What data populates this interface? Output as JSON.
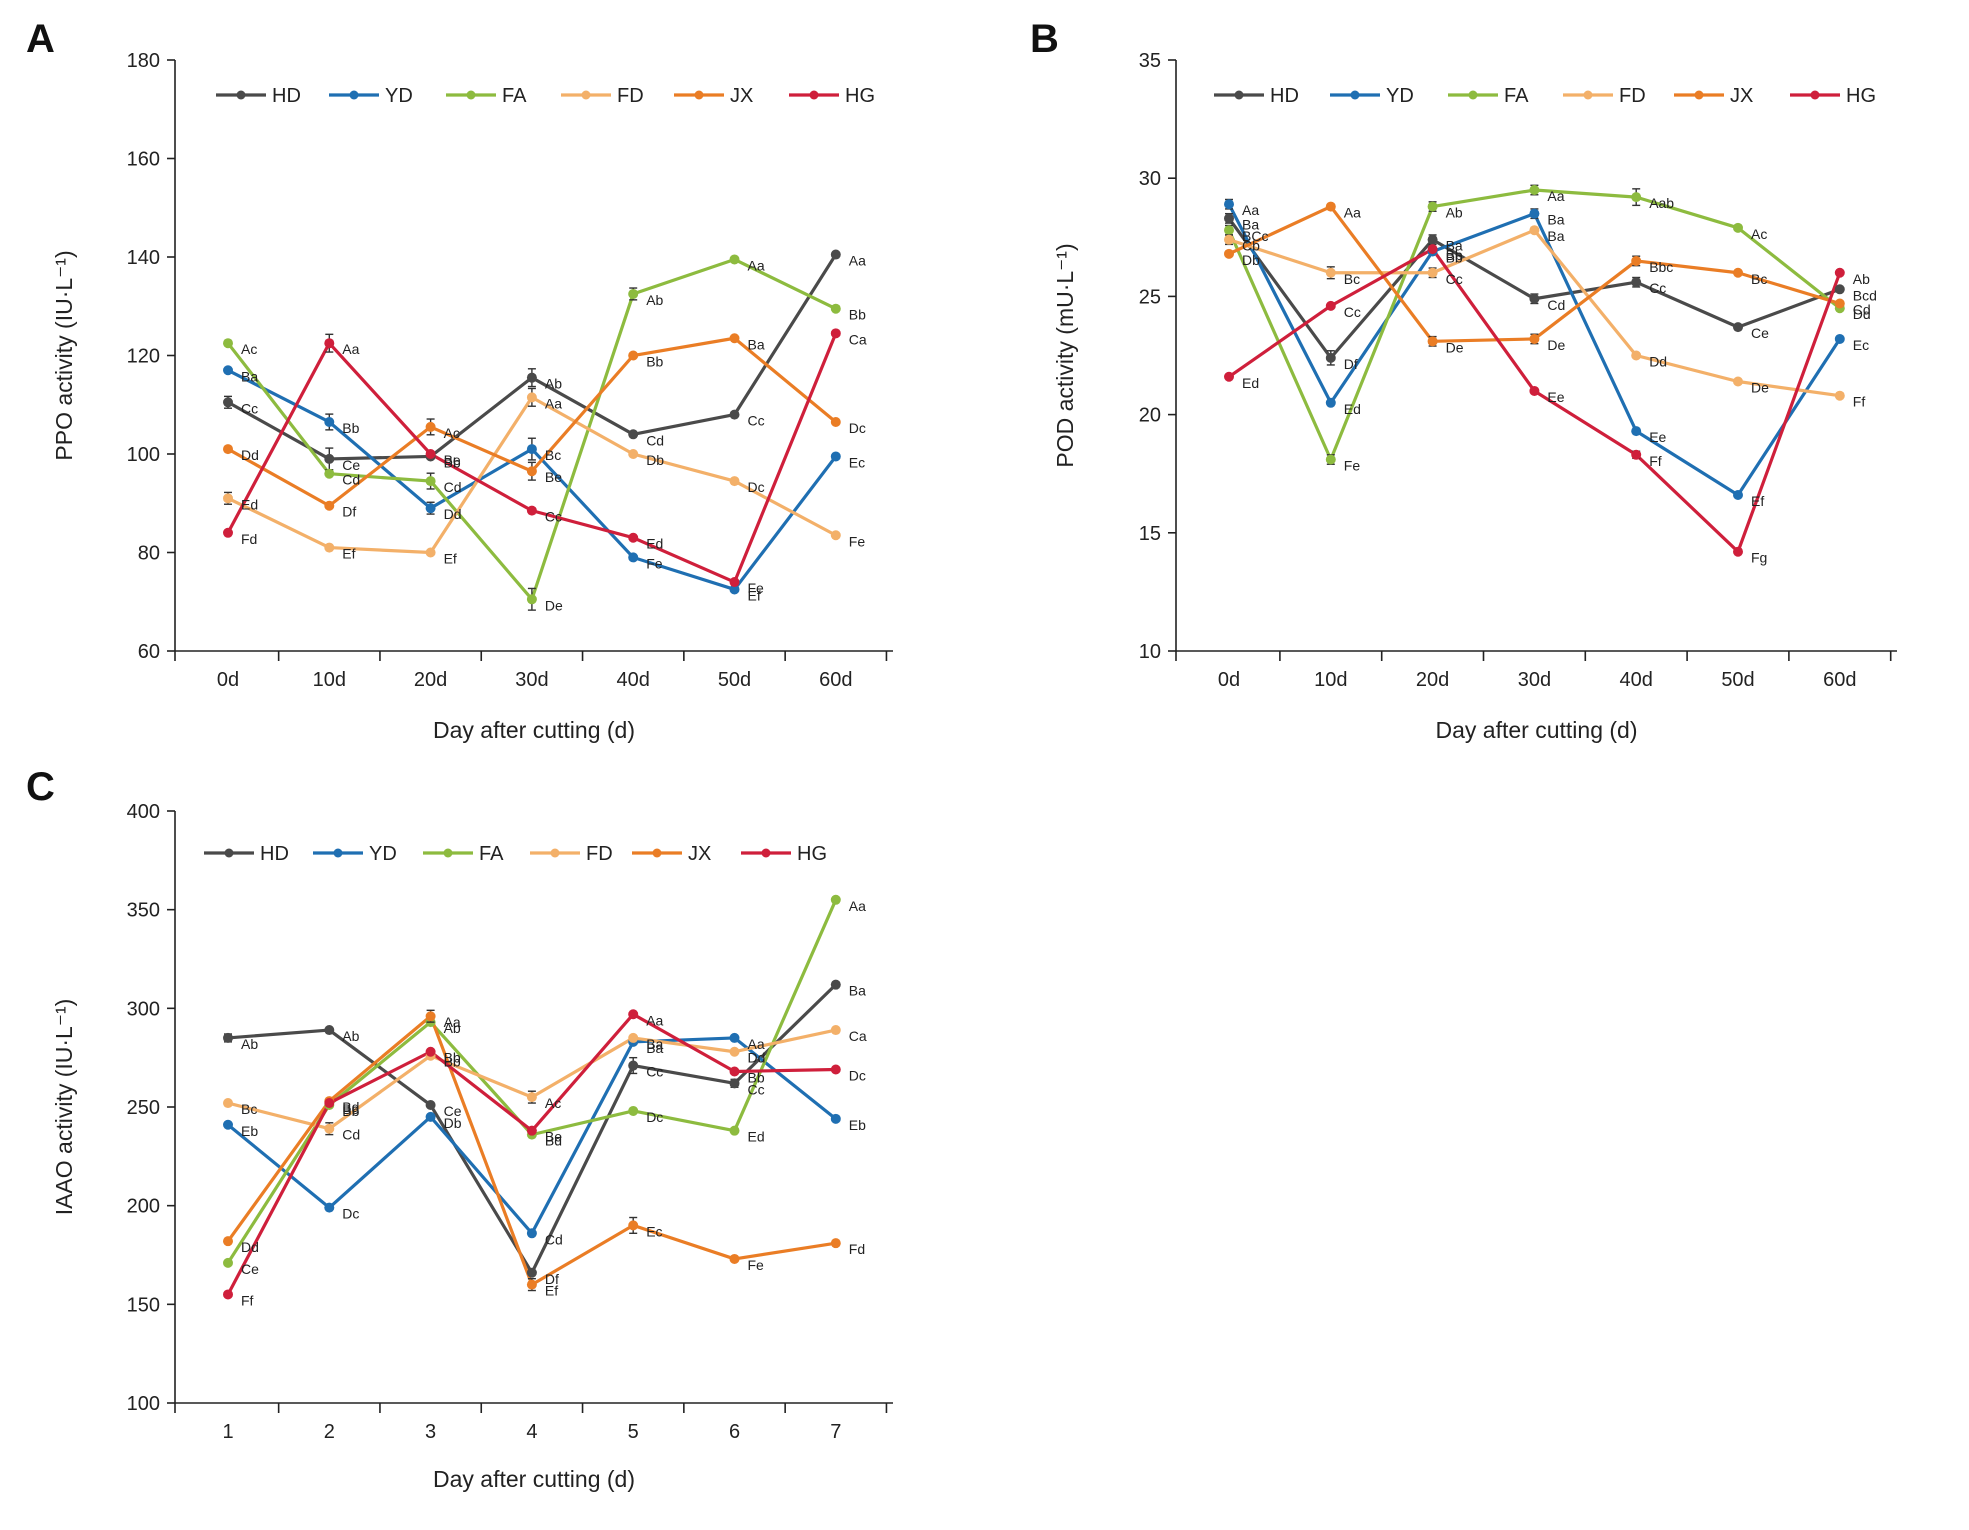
{
  "series_colors": {
    "HD": "#4a4a4a",
    "YD": "#1f6fb2",
    "FA": "#8dbb3f",
    "FD": "#f3b069",
    "JX": "#ea7d25",
    "HG": "#cf1f3b"
  },
  "chart_data": [
    {
      "panel": "A",
      "type": "line",
      "title": "",
      "xlabel": "Day after cutting (d)",
      "ylabel": "PPO activity (IU·L⁻¹)",
      "categories": [
        "0d",
        "10d",
        "20d",
        "30d",
        "40d",
        "50d",
        "60d"
      ],
      "ylim": [
        60,
        180
      ],
      "yticks": [
        60,
        80,
        100,
        120,
        140,
        160,
        180
      ],
      "legend_position": "top",
      "series": [
        {
          "name": "HD",
          "values": [
            110.5,
            99.0,
            99.5,
            115.5,
            104.0,
            108.0,
            140.5
          ],
          "labels": [
            "Cc",
            "Ce",
            "Bb",
            "Ab",
            "Cd",
            "Cc",
            "Aa"
          ],
          "err": [
            1.2,
            2.2,
            0,
            1.8,
            0,
            0,
            0
          ]
        },
        {
          "name": "YD",
          "values": [
            117.0,
            106.5,
            89.0,
            101.0,
            79.0,
            72.5,
            99.5
          ],
          "labels": [
            "Ba",
            "Bb",
            "Dd",
            "Bc",
            "Fe",
            "Ef",
            "Ec"
          ],
          "err": [
            0,
            1.6,
            1.2,
            2.2,
            0,
            0,
            0
          ]
        },
        {
          "name": "FA",
          "values": [
            122.5,
            96.0,
            94.5,
            70.5,
            132.5,
            139.5,
            129.5
          ],
          "labels": [
            "Ac",
            "Cd",
            "Cd",
            "De",
            "Ab",
            "Aa",
            "Bb"
          ],
          "err": [
            0,
            0,
            1.6,
            2.2,
            1.2,
            0,
            0
          ]
        },
        {
          "name": "FD",
          "values": [
            91.0,
            81.0,
            80.0,
            111.5,
            100.0,
            94.5,
            83.5
          ],
          "labels": [
            "Ed",
            "Ef",
            "Ef",
            "Aa",
            "Db",
            "Dc",
            "Fe"
          ],
          "err": [
            1.2,
            0,
            0,
            1.8,
            0,
            0,
            0
          ]
        },
        {
          "name": "JX",
          "values": [
            101.0,
            89.5,
            105.5,
            96.5,
            120.0,
            123.5,
            106.5
          ],
          "labels": [
            "Dd",
            "Df",
            "Ac",
            "Be",
            "Bb",
            "Ba",
            "Dc"
          ],
          "err": [
            0,
            0,
            1.6,
            1.8,
            0,
            0,
            0
          ]
        },
        {
          "name": "HG",
          "values": [
            84.0,
            122.5,
            100.0,
            88.5,
            83.0,
            74.0,
            124.5
          ],
          "labels": [
            "Fd",
            "Aa",
            "Be",
            "Cc",
            "Ed",
            "Fe",
            "Ca"
          ],
          "err": [
            0,
            1.8,
            0,
            0,
            0,
            0,
            0
          ]
        }
      ]
    },
    {
      "panel": "B",
      "type": "line",
      "title": "",
      "xlabel": "Day after cutting (d)",
      "ylabel": "POD activity (mU·L⁻¹)",
      "categories": [
        "0d",
        "10d",
        "20d",
        "30d",
        "40d",
        "50d",
        "60d"
      ],
      "ylim": [
        10,
        35
      ],
      "yticks": [
        10,
        15,
        20,
        25,
        30,
        35
      ],
      "legend_position": "top",
      "series": [
        {
          "name": "HD",
          "values": [
            28.3,
            22.4,
            27.4,
            24.9,
            25.6,
            23.7,
            25.3
          ],
          "labels": [
            "Ba",
            "Df",
            "Ba",
            "Cd",
            "Cc",
            "Ce",
            "Bcd"
          ],
          "err": [
            0.2,
            0.3,
            0.2,
            0.2,
            0.2,
            0,
            0
          ]
        },
        {
          "name": "YD",
          "values": [
            28.9,
            20.5,
            26.9,
            28.5,
            19.3,
            16.6,
            23.2
          ],
          "labels": [
            "Aa",
            "Ed",
            "Bb",
            "Ba",
            "Ee",
            "Ef",
            "Ec"
          ],
          "err": [
            0.2,
            0,
            0,
            0.2,
            0,
            0,
            0
          ]
        },
        {
          "name": "FA",
          "values": [
            27.8,
            18.1,
            28.8,
            29.5,
            29.2,
            27.9,
            24.5
          ],
          "labels": [
            "BCc",
            "Fe",
            "Ab",
            "Aa",
            "Aab",
            "Ac",
            "Dd"
          ],
          "err": [
            0.2,
            0.2,
            0.2,
            0.2,
            0.35,
            0,
            0
          ]
        },
        {
          "name": "FD",
          "values": [
            27.4,
            26.0,
            26.0,
            27.8,
            22.5,
            21.4,
            20.8
          ],
          "labels": [
            "Cb",
            "Bc",
            "Cc",
            "Ba",
            "Dd",
            "De",
            "Ff"
          ],
          "err": [
            0.2,
            0.25,
            0.2,
            0,
            0,
            0,
            0
          ]
        },
        {
          "name": "JX",
          "values": [
            26.8,
            28.8,
            23.1,
            23.2,
            26.5,
            26.0,
            24.7
          ],
          "labels": [
            "Db",
            "Aa",
            "De",
            "De",
            "Bbc",
            "Bc",
            "Cd"
          ],
          "err": [
            0,
            0,
            0.2,
            0.2,
            0.2,
            0,
            0
          ]
        },
        {
          "name": "HG",
          "values": [
            21.6,
            24.6,
            27.0,
            21.0,
            18.3,
            14.2,
            26.0
          ],
          "labels": [
            "Ed",
            "Cc",
            "Bb",
            "Ee",
            "Ff",
            "Fg",
            "Ab"
          ],
          "err": [
            0,
            0,
            0,
            0,
            0.15,
            0,
            0
          ]
        }
      ]
    },
    {
      "panel": "C",
      "type": "line",
      "title": "",
      "xlabel": "Day after cutting (d)",
      "ylabel": "IAAO activity (IU·L⁻¹)",
      "categories": [
        "1",
        "2",
        "3",
        "4",
        "5",
        "6",
        "7"
      ],
      "ylim": [
        100,
        400
      ],
      "yticks": [
        100,
        150,
        200,
        250,
        300,
        350,
        400
      ],
      "legend_position": "top",
      "series": [
        {
          "name": "HD",
          "values": [
            285,
            289,
            251,
            166,
            271,
            262,
            312
          ],
          "labels": [
            "Ab",
            "Ab",
            "Ce",
            "Df",
            "Cc",
            "Cc",
            "Ba"
          ],
          "err": [
            2,
            0,
            0,
            0,
            4,
            2,
            0
          ]
        },
        {
          "name": "YD",
          "values": [
            241,
            199,
            245,
            186,
            283,
            285,
            244
          ],
          "labels": [
            "Eb",
            "Dc",
            "Db",
            "Cd",
            "Ba",
            "Aa",
            "Eb"
          ],
          "err": [
            0,
            0,
            0,
            0,
            0,
            0,
            0
          ]
        },
        {
          "name": "FA",
          "values": [
            171,
            251,
            293,
            236,
            248,
            238,
            355
          ],
          "labels": [
            "Ce",
            "Bb",
            "Ab",
            "Bd",
            "Dc",
            "Ed",
            "Aa"
          ],
          "err": [
            0,
            0,
            0,
            0,
            0,
            0,
            0
          ]
        },
        {
          "name": "FD",
          "values": [
            252,
            239,
            276,
            255,
            285,
            278,
            289
          ],
          "labels": [
            "Bc",
            "Cd",
            "Bb",
            "Ac",
            "Ba",
            "Dd",
            "Ca"
          ],
          "err": [
            0,
            3,
            0,
            3,
            0,
            0,
            0
          ]
        },
        {
          "name": "JX",
          "values": [
            182,
            253,
            296,
            160,
            190,
            173,
            181
          ],
          "labels": [
            "Dd",
            "Bd",
            "Aa",
            "Ef",
            "Ec",
            "Fe",
            "Fd"
          ],
          "err": [
            0,
            0,
            3,
            3,
            4,
            0,
            0
          ]
        },
        {
          "name": "HG",
          "values": [
            155,
            252,
            278,
            238,
            297,
            268,
            269
          ],
          "labels": [
            "Ff",
            "Bc",
            "Bb",
            "Be",
            "Aa",
            "Bb",
            "Dc"
          ],
          "err": [
            0,
            0,
            0,
            0,
            0,
            0,
            0
          ]
        }
      ]
    }
  ]
}
